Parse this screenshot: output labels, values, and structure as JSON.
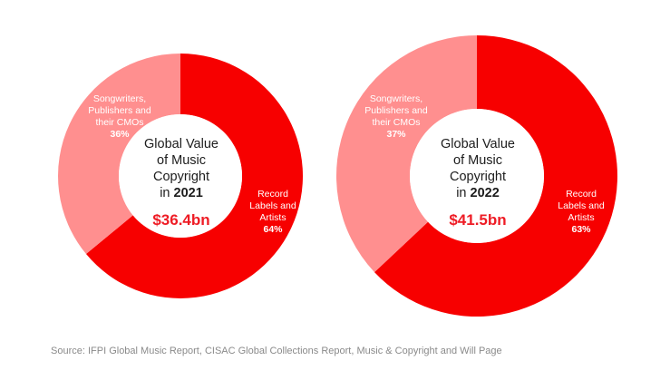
{
  "colors": {
    "labels_artists": "#f70000",
    "songwriters": "#ff8f8f",
    "total_text": "#ee1c25",
    "center_text": "#1c1c1c",
    "source_text": "#8a8a8a"
  },
  "chart_data": [
    {
      "type": "pie",
      "variant": "donut",
      "title_lines": [
        "Global Value",
        "of Music",
        "Copyright"
      ],
      "year_prefix": "in",
      "year": "2021",
      "total": "$36.4bn",
      "slices": [
        {
          "label_lines": [
            "Record",
            "Labels and",
            "Artists"
          ],
          "value": 64,
          "pct": "64%",
          "color": "#f70000"
        },
        {
          "label_lines": [
            "Songwriters,",
            "Publishers and",
            "their CMOs"
          ],
          "value": 36,
          "pct": "36%",
          "color": "#ff8f8f"
        }
      ]
    },
    {
      "type": "pie",
      "variant": "donut",
      "title_lines": [
        "Global Value",
        "of Music",
        "Copyright"
      ],
      "year_prefix": "in",
      "year": "2022",
      "total": "$41.5bn",
      "slices": [
        {
          "label_lines": [
            "Record",
            "Labels and",
            "Artists"
          ],
          "value": 63,
          "pct": "63%",
          "color": "#f70000"
        },
        {
          "label_lines": [
            "Songwriters,",
            "Publishers and",
            "their CMOs"
          ],
          "value": 37,
          "pct": "37%",
          "color": "#ff8f8f"
        }
      ]
    }
  ],
  "source": "Source: IFPI Global Music Report, CISAC Global Collections Report, Music & Copyright and Will Page"
}
